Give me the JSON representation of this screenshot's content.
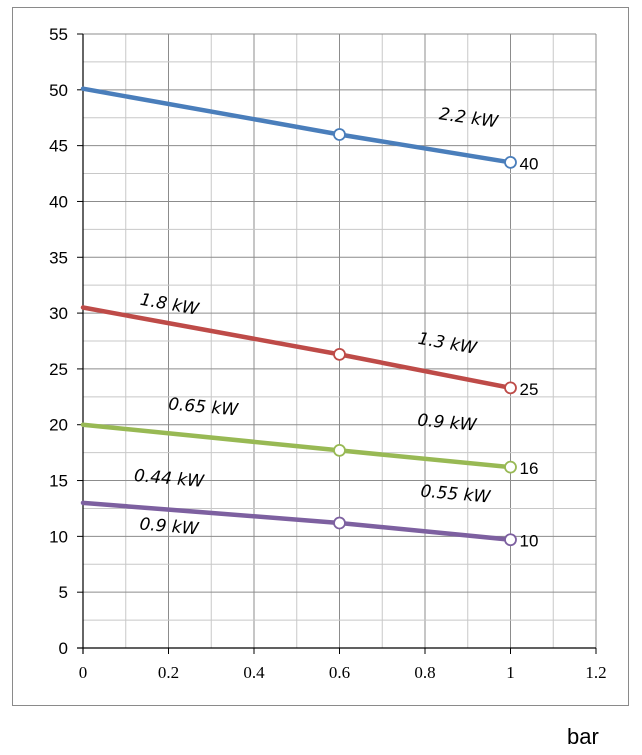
{
  "chart_data": {
    "type": "line",
    "xlim": [
      0,
      1.2
    ],
    "ylim": [
      0,
      55
    ],
    "x_ticks": [
      "0",
      "0.2",
      "0.4",
      "0.6",
      "0.8",
      "1",
      "1.2"
    ],
    "y_ticks": [
      "0",
      "5",
      "10",
      "15",
      "20",
      "25",
      "30",
      "35",
      "40",
      "45",
      "50",
      "55"
    ],
    "xlabel": "bar",
    "ylabel": "",
    "title": "",
    "grid": true,
    "legend": "none",
    "x": [
      0,
      0.6,
      1.0
    ],
    "series": [
      {
        "end_label": "40",
        "color": "#4a7ebb",
        "values": [
          50.1,
          46.0,
          43.5
        ]
      },
      {
        "end_label": "25",
        "color": "#be4b48",
        "values": [
          30.5,
          26.3,
          23.3
        ]
      },
      {
        "end_label": "16",
        "color": "#98b954",
        "values": [
          20.0,
          17.7,
          16.2
        ]
      },
      {
        "end_label": "10",
        "color": "#7d60a0",
        "values": [
          13.0,
          11.2,
          9.7
        ]
      }
    ],
    "annotations": [
      {
        "text": "2.2 kW",
        "x": 0.9,
        "y": 47.0,
        "rotate": 8
      },
      {
        "text": "1.8 kW",
        "x": 0.2,
        "y": 30.3,
        "rotate": 10
      },
      {
        "text": "1.3 kW",
        "x": 0.85,
        "y": 26.8,
        "rotate": 10
      },
      {
        "text": "0.65 kW",
        "x": 0.28,
        "y": 21.1,
        "rotate": 5
      },
      {
        "text": "0.9 kW",
        "x": 0.85,
        "y": 19.7,
        "rotate": 5
      },
      {
        "text": "0.44 kW",
        "x": 0.2,
        "y": 14.7,
        "rotate": 5
      },
      {
        "text": "0.55 kW",
        "x": 0.87,
        "y": 13.3,
        "rotate": 5
      },
      {
        "text": "0.9 kW",
        "x": 0.2,
        "y": 10.4,
        "rotate": 5
      }
    ]
  }
}
